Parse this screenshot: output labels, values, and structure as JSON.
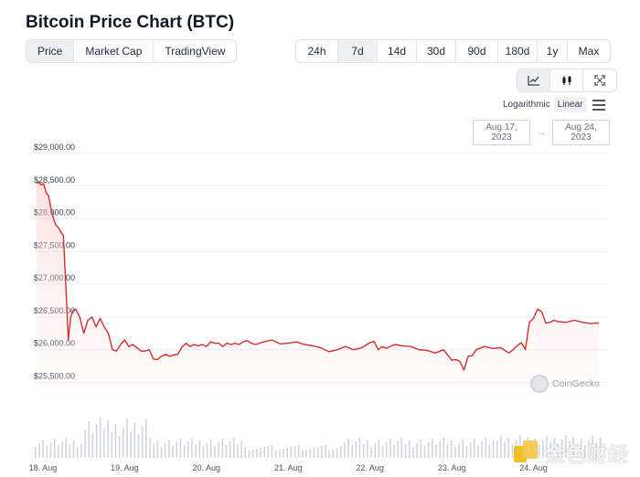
{
  "title": "Bitcoin Price Chart (BTC)",
  "view_tabs": [
    {
      "label": "Price",
      "active": true
    },
    {
      "label": "Market Cap",
      "active": false
    },
    {
      "label": "TradingView",
      "active": false
    }
  ],
  "range_tabs": [
    {
      "label": "24h",
      "active": false
    },
    {
      "label": "7d",
      "active": true
    },
    {
      "label": "14d",
      "active": false
    },
    {
      "label": "30d",
      "active": false
    },
    {
      "label": "90d",
      "active": false
    },
    {
      "label": "180d",
      "active": false
    },
    {
      "label": "1y",
      "active": false
    },
    {
      "label": "Max",
      "active": false
    }
  ],
  "chart_type_tabs": [
    {
      "icon": "line-chart-icon",
      "active": true
    },
    {
      "icon": "candlestick-icon",
      "active": false
    },
    {
      "icon": "fullscreen-icon",
      "active": false
    }
  ],
  "scale": {
    "log_label": "Logarithmic",
    "linear_label": "Linear",
    "active": "Linear"
  },
  "date_range": {
    "from": "Aug 17, 2023",
    "arrow": "→",
    "to": "Aug 24, 2023"
  },
  "watermark": "CoinGecko",
  "brand": "金色财经",
  "colors": {
    "line": "#d32f2f",
    "area": "#fde7e7",
    "volume": "#d1d5db",
    "accent_bg": "#eef0f3"
  },
  "chart_data": {
    "type": "line",
    "ylim": [
      25200,
      29000
    ],
    "yticks": [
      29000,
      28500,
      28000,
      27500,
      27000,
      26500,
      26000,
      25500
    ],
    "ytick_labels": [
      "$29,000.00",
      "$28,500.00",
      "$28,000.00",
      "$27,500.00",
      "$27,000.00",
      "$26,500.00",
      "$26,000.00",
      "$25,500.00"
    ],
    "xtick_labels": [
      "18. Aug",
      "19. Aug",
      "20. Aug",
      "21. Aug",
      "22. Aug",
      "23. Aug",
      "24. Aug"
    ],
    "xlim": [
      17.9,
      24.9
    ],
    "x": [
      17.92,
      17.95,
      17.98,
      18.01,
      18.04,
      18.07,
      18.1,
      18.13,
      18.16,
      18.19,
      18.22,
      18.25,
      18.28,
      18.31,
      18.34,
      18.37,
      18.4,
      18.45,
      18.5,
      18.55,
      18.6,
      18.65,
      18.7,
      18.75,
      18.8,
      18.85,
      18.9,
      18.95,
      19.0,
      19.05,
      19.1,
      19.15,
      19.2,
      19.25,
      19.3,
      19.35,
      19.4,
      19.45,
      19.5,
      19.55,
      19.6,
      19.65,
      19.7,
      19.75,
      19.8,
      19.85,
      19.9,
      19.95,
      20.0,
      20.05,
      20.1,
      20.15,
      20.2,
      20.25,
      20.3,
      20.35,
      20.4,
      20.45,
      20.5,
      20.55,
      20.6,
      20.7,
      20.8,
      20.9,
      21.0,
      21.1,
      21.2,
      21.3,
      21.4,
      21.5,
      21.6,
      21.7,
      21.8,
      21.9,
      22.0,
      22.05,
      22.1,
      22.15,
      22.2,
      22.3,
      22.4,
      22.5,
      22.6,
      22.7,
      22.8,
      22.9,
      23.0,
      23.05,
      23.1,
      23.15,
      23.2,
      23.25,
      23.3,
      23.4,
      23.5,
      23.6,
      23.7,
      23.75,
      23.8,
      23.85,
      23.9,
      23.95,
      24.0,
      24.05,
      24.1,
      24.15,
      24.2,
      24.25,
      24.3,
      24.4,
      24.5,
      24.6,
      24.7,
      24.8
    ],
    "values": [
      28550,
      28560,
      28520,
      28540,
      28400,
      28350,
      28150,
      28000,
      27900,
      27870,
      27800,
      27750,
      27000,
      26150,
      26500,
      26600,
      26620,
      26500,
      26250,
      26450,
      26500,
      26350,
      26480,
      26350,
      26250,
      26000,
      25980,
      26080,
      26150,
      26050,
      26080,
      26030,
      25980,
      25980,
      26000,
      25860,
      25850,
      25900,
      25930,
      25900,
      25920,
      25930,
      26040,
      26100,
      26050,
      26080,
      26060,
      26080,
      26050,
      26120,
      26100,
      26100,
      26050,
      26100,
      26080,
      26100,
      26080,
      26120,
      26140,
      26100,
      26080,
      26120,
      26150,
      26090,
      26100,
      26120,
      26080,
      26060,
      26030,
      25970,
      26000,
      26050,
      26000,
      26030,
      26110,
      26130,
      26000,
      26050,
      26020,
      26080,
      26060,
      26050,
      26000,
      25990,
      25950,
      26000,
      25840,
      25850,
      25820,
      25690,
      25900,
      25910,
      26000,
      26050,
      26020,
      26030,
      25950,
      26000,
      26060,
      26110,
      26000,
      26420,
      26480,
      26620,
      26580,
      26410,
      26420,
      26450,
      26430,
      26420,
      26450,
      26420,
      26400,
      26410
    ]
  }
}
